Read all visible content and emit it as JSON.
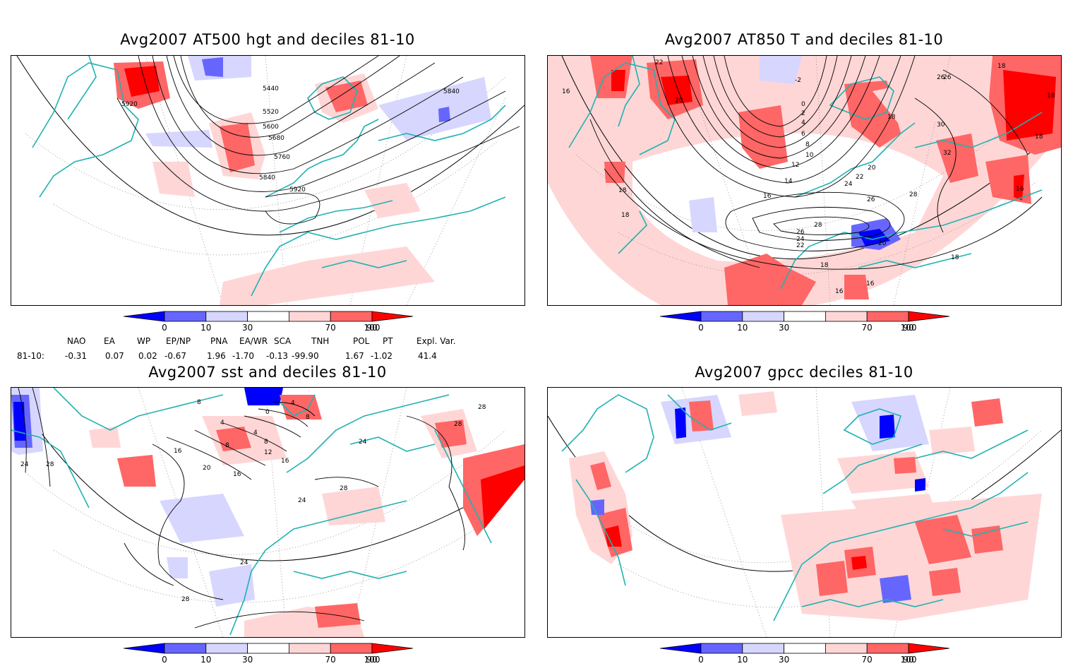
{
  "panels": [
    {
      "title": "Avg2007 AT500 hgt and deciles 81-10",
      "contour_labels": [
        "5920",
        "5440",
        "5520",
        "5600",
        "5680",
        "5760",
        "5840",
        "5920",
        "5840"
      ]
    },
    {
      "title": "Avg2007 AT850 T and deciles 81-10",
      "contour_labels": [
        "22",
        "20",
        "16",
        "0",
        "2",
        "4",
        "6",
        "8",
        "10",
        "12",
        "14",
        "16",
        "18",
        "18",
        "20",
        "22",
        "24",
        "26",
        "28",
        "26",
        "24",
        "22",
        "20",
        "18",
        "16",
        "16",
        "18",
        "28",
        "26",
        "26",
        "18",
        "18",
        "30",
        "32",
        "18",
        "16",
        "-2",
        "18"
      ]
    },
    {
      "title": "Avg2007 sst and deciles 81-10",
      "contour_labels": [
        "24",
        "28",
        "8",
        "4",
        "16",
        "8",
        "20",
        "16",
        "12",
        "8",
        "4",
        "0",
        "4",
        "8",
        "16",
        "24",
        "24",
        "28",
        "28",
        "28",
        "24",
        "28"
      ]
    },
    {
      "title": "Avg2007 gpcc deciles 81-10",
      "contour_labels": []
    }
  ],
  "colorbar": {
    "labels": [
      "0",
      "10",
      "30",
      "70",
      "90",
      "100"
    ],
    "colors": [
      "#0000ff",
      "#6666ff",
      "#d6d6ff",
      "#ffffff",
      "#ffd6d6",
      "#ff6666",
      "#ff0000"
    ]
  },
  "indices": {
    "names": [
      "NAO",
      "EA",
      "WP",
      "EP/NP",
      "PNA",
      "EA/WR",
      "SCA",
      "TNH",
      "POL",
      "PT",
      "Expl. Var."
    ],
    "row_label": "81-10:",
    "values": [
      "-0.31",
      "0.07",
      "0.02",
      "-0.67",
      "1.96",
      "-1.70",
      "-0.13",
      "-99.90",
      "1.67",
      "-1.02",
      "41.4"
    ]
  }
}
